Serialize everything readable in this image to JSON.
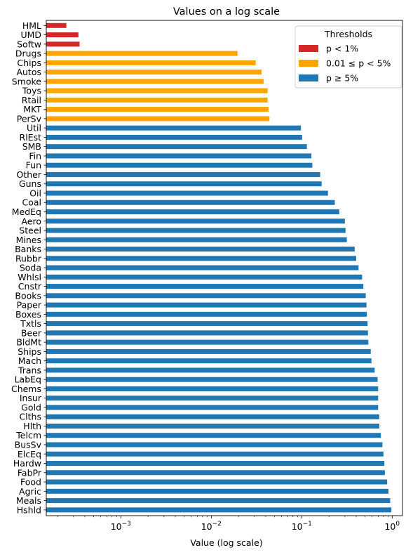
{
  "chart_data": {
    "type": "bar",
    "orientation": "horizontal",
    "title": "Values on a log scale",
    "xlabel": "Value (log scale)",
    "ylabel": "",
    "xscale": "log",
    "xlim": [
      0.00015,
      1.3
    ],
    "xticks": [
      {
        "value": 0.001,
        "base": "10",
        "exp": "−3"
      },
      {
        "value": 0.01,
        "base": "10",
        "exp": "−2"
      },
      {
        "value": 0.1,
        "base": "10",
        "exp": "−1"
      },
      {
        "value": 1,
        "base": "10",
        "exp": "0"
      }
    ],
    "grid": false,
    "legend": {
      "title": "Thresholds",
      "placement": "top-right",
      "entries": [
        {
          "label": "p < 1%",
          "color": "#d62728"
        },
        {
          "label": "0.01 ≤ p < 5%",
          "color": "#ffa500"
        },
        {
          "label": "p ≥ 5%",
          "color": "#1f77b4"
        }
      ]
    },
    "colors": {
      "low": "#d62728",
      "mid": "#ffa500",
      "high": "#1f77b4"
    },
    "categories": [
      "HML",
      "UMD",
      "Softw",
      "Drugs",
      "Chips",
      "Autos",
      "Smoke",
      "Toys",
      "Rtail",
      "MKT",
      "PerSv",
      "Util",
      "RlEst",
      "SMB",
      "Fin",
      "Fun",
      "Other",
      "Guns",
      "Oil",
      "Coal",
      "MedEq",
      "Aero",
      "Steel",
      "Mines",
      "Banks",
      "Rubbr",
      "Soda",
      "Whlsl",
      "Cnstr",
      "Books",
      "Paper",
      "Boxes",
      "Txtls",
      "Beer",
      "BldMt",
      "Ships",
      "Mach",
      "Trans",
      "LabEq",
      "Chems",
      "Insur",
      "Gold",
      "Clths",
      "Hlth",
      "Telcm",
      "BusSv",
      "ElcEq",
      "Hardw",
      "FabPr",
      "Food",
      "Agric",
      "Meals",
      "Hshld"
    ],
    "values": [
      0.00025,
      0.00034,
      0.00035,
      0.0195,
      0.031,
      0.036,
      0.038,
      0.042,
      0.042,
      0.043,
      0.044,
      0.098,
      0.101,
      0.114,
      0.128,
      0.131,
      0.16,
      0.166,
      0.195,
      0.232,
      0.26,
      0.3,
      0.305,
      0.315,
      0.385,
      0.4,
      0.425,
      0.465,
      0.48,
      0.51,
      0.52,
      0.525,
      0.535,
      0.54,
      0.545,
      0.58,
      0.59,
      0.64,
      0.69,
      0.7,
      0.7,
      0.7,
      0.72,
      0.72,
      0.75,
      0.78,
      0.8,
      0.82,
      0.83,
      0.88,
      0.91,
      0.95,
      0.98
    ],
    "groups": [
      "low",
      "low",
      "low",
      "mid",
      "mid",
      "mid",
      "mid",
      "mid",
      "mid",
      "mid",
      "mid",
      "high",
      "high",
      "high",
      "high",
      "high",
      "high",
      "high",
      "high",
      "high",
      "high",
      "high",
      "high",
      "high",
      "high",
      "high",
      "high",
      "high",
      "high",
      "high",
      "high",
      "high",
      "high",
      "high",
      "high",
      "high",
      "high",
      "high",
      "high",
      "high",
      "high",
      "high",
      "high",
      "high",
      "high",
      "high",
      "high",
      "high",
      "high",
      "high",
      "high",
      "high",
      "high"
    ]
  }
}
